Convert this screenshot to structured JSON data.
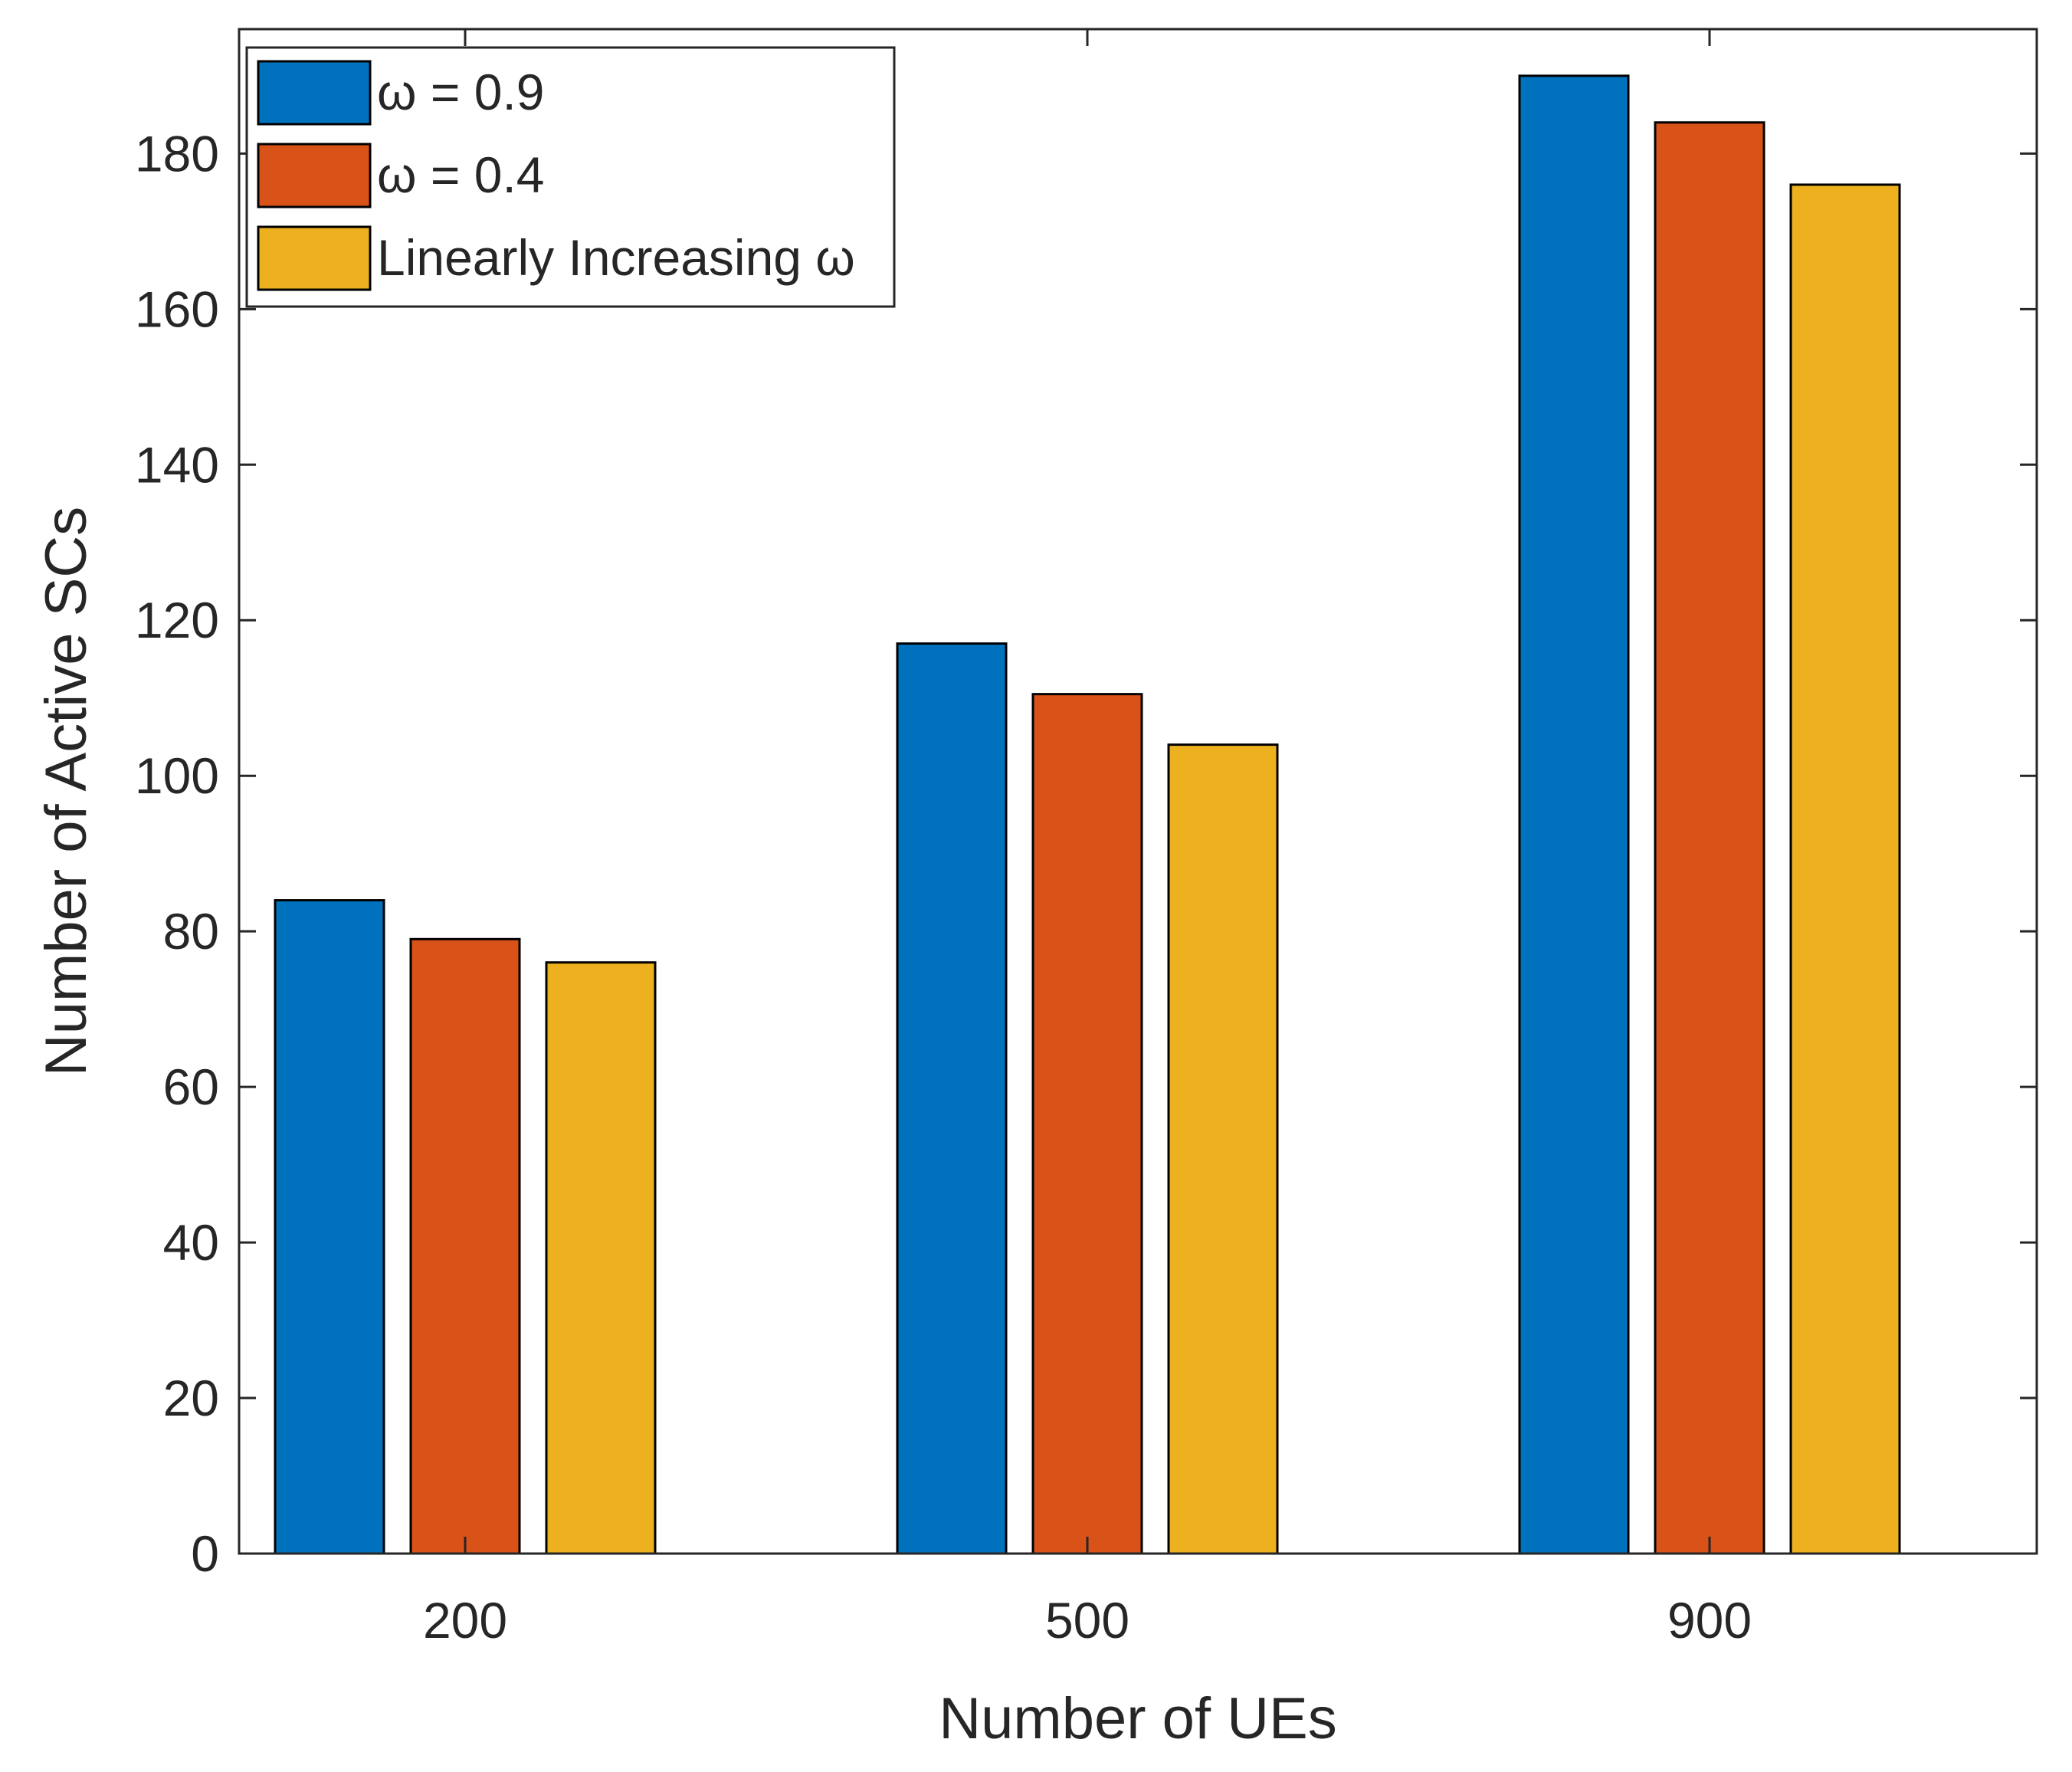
{
  "chart_data": {
    "type": "bar",
    "title": "",
    "xlabel": "Number of UEs",
    "ylabel": "Number of Active SCs",
    "categories": [
      "200",
      "500",
      "900"
    ],
    "series": [
      {
        "name": "ω = 0.9",
        "color": "#0072BD",
        "values": [
          84,
          117,
          190
        ]
      },
      {
        "name": "ω = 0.4",
        "color": "#D95319",
        "values": [
          79,
          110.5,
          184
        ]
      },
      {
        "name": "Linearly Increasing ω",
        "color": "#EDB120",
        "values": [
          76,
          104,
          176
        ]
      }
    ],
    "ylim": [
      0,
      196
    ],
    "yticks": [
      0,
      20,
      40,
      60,
      80,
      100,
      120,
      140,
      160,
      180
    ],
    "grid": false,
    "legend_position": "top-left",
    "box": true
  }
}
